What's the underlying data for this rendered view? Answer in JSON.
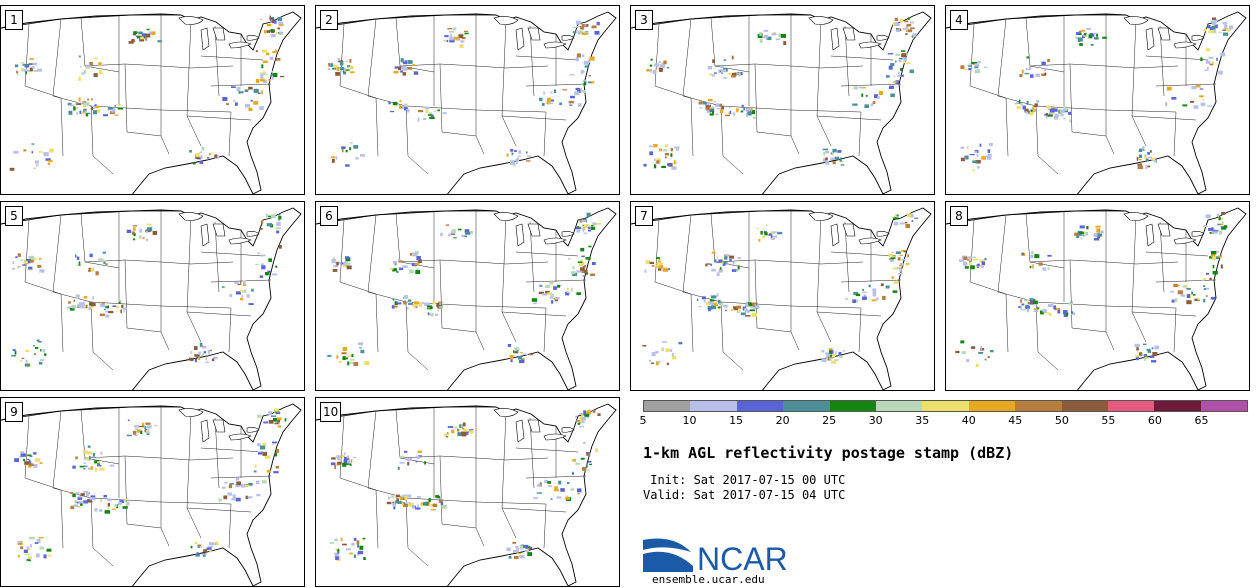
{
  "panels": [
    {
      "label": "1"
    },
    {
      "label": "2"
    },
    {
      "label": "3"
    },
    {
      "label": "4"
    },
    {
      "label": "5"
    },
    {
      "label": "6"
    },
    {
      "label": "7"
    },
    {
      "label": "8"
    },
    {
      "label": "9"
    },
    {
      "label": "10"
    }
  ],
  "colorbar": {
    "colors": [
      "#a0a0a0",
      "#b8bfea",
      "#5a64d8",
      "#4a9098",
      "#12860f",
      "#b8d8b8",
      "#ecdf6a",
      "#e8a820",
      "#b87d3c",
      "#8c5a3c",
      "#e65a80",
      "#6e1a3a",
      "#b050a8"
    ],
    "ticks": [
      "5",
      "10",
      "15",
      "20",
      "25",
      "30",
      "35",
      "40",
      "45",
      "50",
      "55",
      "60",
      "65"
    ]
  },
  "title": "1-km AGL reflectivity postage stamp (dBZ)",
  "init_line": " Init: Sat 2017-07-15 00 UTC",
  "valid_line": "Valid: Sat 2017-07-15 04 UTC",
  "logo": {
    "text": "NCAR",
    "color": "#1b5aa6",
    "url": "ensemble.ucar.edu"
  }
}
